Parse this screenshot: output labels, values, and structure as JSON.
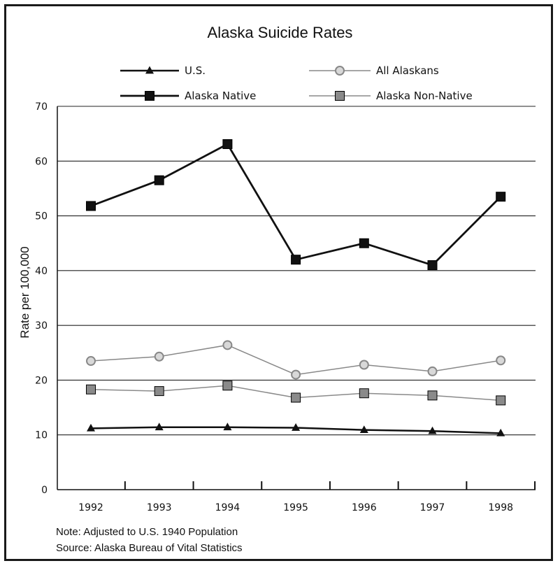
{
  "chart_data": {
    "type": "line",
    "title": "Alaska Suicide Rates",
    "xlabel": "",
    "ylabel": "Rate per 100,000",
    "categories": [
      "1992",
      "1993",
      "1994",
      "1995",
      "1996",
      "1997",
      "1998"
    ],
    "ylim": [
      0,
      70
    ],
    "yticks": [
      "0",
      "10",
      "20",
      "30",
      "40",
      "50",
      "60",
      "70"
    ],
    "grid": true,
    "legend_position": "top",
    "series": [
      {
        "name": "U.S.",
        "values": [
          11.2,
          11.4,
          11.4,
          11.3,
          10.9,
          10.7,
          10.3
        ],
        "color": "#111111",
        "marker": "triangle"
      },
      {
        "name": "All Alaskans",
        "values": [
          23.5,
          24.3,
          26.4,
          21.0,
          22.8,
          21.6,
          23.6
        ],
        "color": "#888888",
        "marker": "circle"
      },
      {
        "name": "Alaska Native",
        "values": [
          51.8,
          56.5,
          63.1,
          42.0,
          45.0,
          41.0,
          53.5
        ],
        "color": "#111111",
        "marker": "square"
      },
      {
        "name": "Alaska Non-Native",
        "values": [
          18.3,
          18.0,
          19.0,
          16.8,
          17.6,
          17.2,
          16.3
        ],
        "color": "#8a8a8a",
        "marker": "square"
      }
    ],
    "notes": [
      "Note: Adjusted to U.S. 1940 Population",
      "Source: Alaska Bureau of Vital Statistics"
    ]
  }
}
